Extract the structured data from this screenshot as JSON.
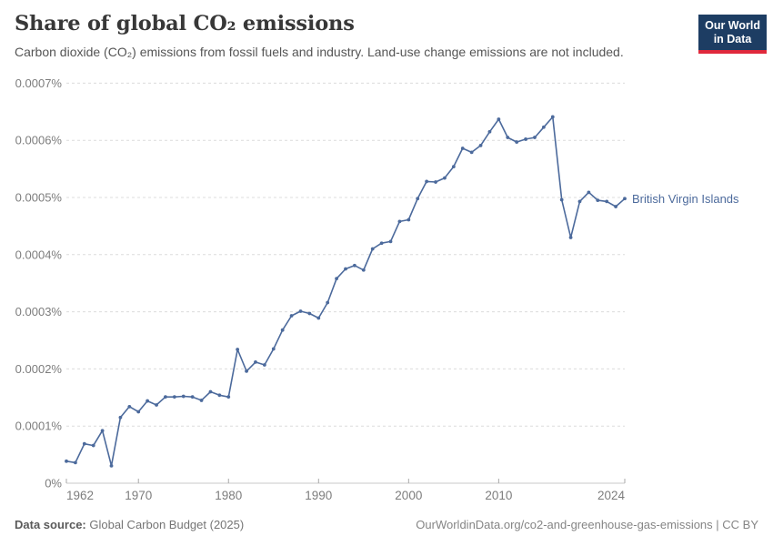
{
  "header": {
    "title": "Share of global CO₂ emissions",
    "subtitle": "Carbon dioxide (CO₂) emissions from fossil fuels and industry. Land-use change emissions are not included.",
    "logo": {
      "line1": "Our World",
      "line2": "in Data"
    }
  },
  "colors": {
    "series_blue": "#4c6a9c",
    "logo_navy": "#1d3d63",
    "logo_red": "#e0293c"
  },
  "chart_data": {
    "type": "line",
    "title": "Share of global CO₂ emissions",
    "xlabel": "",
    "ylabel": "",
    "unit": "%",
    "xlim": [
      1962,
      2024
    ],
    "ylim": [
      0,
      0.0007
    ],
    "grid": "dashed-horizontal",
    "legend_position": "end-of-line-label",
    "x_ticks": [
      1962,
      1970,
      1980,
      1990,
      2000,
      2010,
      2024
    ],
    "y_ticks": [
      {
        "value": 0,
        "label": "0%"
      },
      {
        "value": 0.0001,
        "label": "0.0001%"
      },
      {
        "value": 0.0002,
        "label": "0.0002%"
      },
      {
        "value": 0.0003,
        "label": "0.0003%"
      },
      {
        "value": 0.0004,
        "label": "0.0004%"
      },
      {
        "value": 0.0005,
        "label": "0.0005%"
      },
      {
        "value": 0.0006,
        "label": "0.0006%"
      },
      {
        "value": 0.0007,
        "label": "0.0007%"
      }
    ],
    "x": [
      1962,
      1963,
      1964,
      1965,
      1966,
      1967,
      1968,
      1969,
      1970,
      1971,
      1972,
      1973,
      1974,
      1975,
      1976,
      1977,
      1978,
      1979,
      1980,
      1981,
      1982,
      1983,
      1984,
      1985,
      1986,
      1987,
      1988,
      1989,
      1990,
      1991,
      1992,
      1993,
      1994,
      1995,
      1996,
      1997,
      1998,
      1999,
      2000,
      2001,
      2002,
      2003,
      2004,
      2005,
      2006,
      2007,
      2008,
      2009,
      2010,
      2011,
      2012,
      2013,
      2014,
      2015,
      2016,
      2017,
      2018,
      2019,
      2020,
      2021,
      2022,
      2023,
      2024
    ],
    "series": [
      {
        "name": "British Virgin Islands",
        "color": "#4c6a9c",
        "values": [
          3.85e-05,
          3.6e-05,
          6.9e-05,
          6.6e-05,
          9.2e-05,
          3.05e-05,
          0.000115,
          0.000134,
          0.000125,
          0.000144,
          0.000137,
          0.000151,
          0.000151,
          0.000152,
          0.000151,
          0.000145,
          0.00016,
          0.000154,
          0.000151,
          0.000234,
          0.000196,
          0.000212,
          0.000207,
          0.000235,
          0.000268,
          0.000293,
          0.000301,
          0.000297,
          0.000289,
          0.000316,
          0.000358,
          0.000375,
          0.000381,
          0.000373,
          0.00041,
          0.00042,
          0.000423,
          0.000458,
          0.000461,
          0.000498,
          0.000528,
          0.000527,
          0.000534,
          0.000554,
          0.000586,
          0.000579,
          0.000591,
          0.000615,
          0.000637,
          0.000605,
          0.000597,
          0.000602,
          0.000605,
          0.000623,
          0.000641,
          0.000496,
          0.00043,
          0.000493,
          0.000509,
          0.000495,
          0.000493,
          0.000484,
          0.000498
        ]
      }
    ]
  },
  "footer": {
    "source_label": "Data source:",
    "source_value": " Global Carbon Budget (2025)",
    "attribution": "OurWorldinData.org/co2-and-greenhouse-gas-emissions | CC BY"
  }
}
